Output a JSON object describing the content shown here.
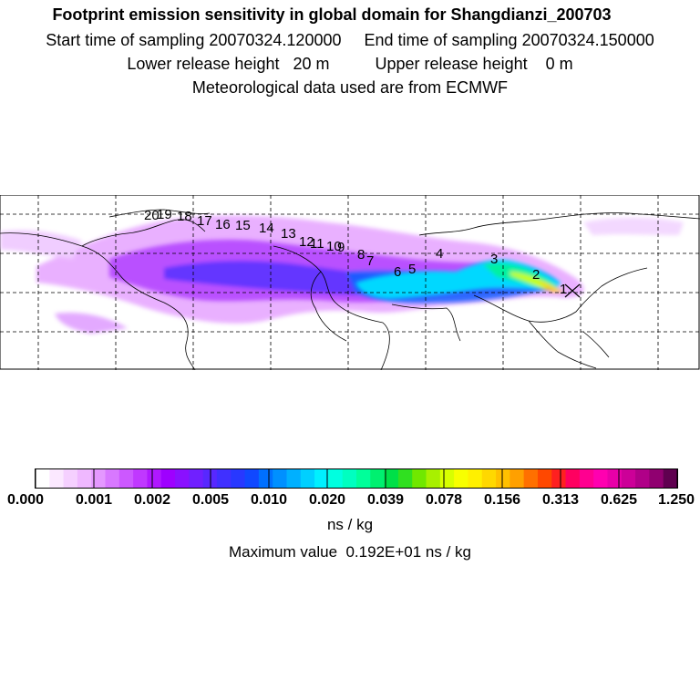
{
  "header": {
    "title": "Footprint emission sensitivity in global domain for Shangdianzi_200703",
    "sampling": "Start time of sampling 20070324.120000     End time of sampling 20070324.150000",
    "release": "Lower release height   20 m          Upper release height    0 m",
    "meteo": "Meteorological data used are from ECMWF"
  },
  "map": {
    "trajectory_labels": [
      "1",
      "2",
      "3",
      "4",
      "5",
      "6",
      "7",
      "8",
      "9",
      "10",
      "11",
      "12",
      "13",
      "14",
      "15",
      "16",
      "17",
      "18",
      "19",
      "20"
    ]
  },
  "colorbar": {
    "colors": [
      "#ffffff",
      "#fbe8ff",
      "#f5d0ff",
      "#efb8ff",
      "#e498ff",
      "#d878ff",
      "#cc58ff",
      "#c038ff",
      "#b018ff",
      "#9e00ff",
      "#8a10ff",
      "#7020ff",
      "#5828ff",
      "#4030ff",
      "#2838ff",
      "#1048ff",
      "#0070ff",
      "#0090ff",
      "#00b0ff",
      "#00d0ff",
      "#00f0ff",
      "#00ffe0",
      "#00ffc0",
      "#00ff9a",
      "#00f070",
      "#00e048",
      "#30e020",
      "#70e800",
      "#a8f000",
      "#d8ff00",
      "#f8ff00",
      "#fff000",
      "#ffd800",
      "#ffc000",
      "#ffa000",
      "#ff7000",
      "#ff4800",
      "#ff2020",
      "#ff0060",
      "#ff0090",
      "#ff00b0",
      "#e800a8",
      "#cc0098",
      "#b00088",
      "#900070",
      "#600050"
    ],
    "tick_labels": [
      "0.000",
      "0.001",
      "0.002",
      "0.005",
      "0.010",
      "0.020",
      "0.039",
      "0.078",
      "0.156",
      "0.313",
      "0.625",
      "1.250"
    ],
    "unit": "ns / kg"
  },
  "max_value": "Maximum value  0.192E+01 ns / kg"
}
